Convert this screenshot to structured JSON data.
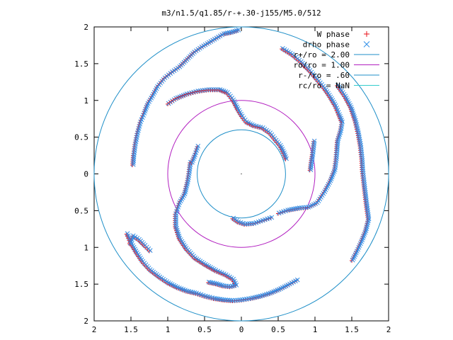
{
  "chart_data": {
    "type": "scatter",
    "title": "m3/n1.5/q1.85/r-+.30-j155/M5.0/512",
    "xlabel": "",
    "ylabel": "",
    "xlim": [
      -2,
      2
    ],
    "ylim": [
      -2,
      2
    ],
    "x_tick_values": [
      -2,
      -1.5,
      -1,
      -0.5,
      0,
      0.5,
      1,
      1.5,
      2
    ],
    "x_tick_labels": [
      "2",
      "1.5",
      "1",
      "0.5",
      "0",
      "0.5",
      "1",
      "1.5",
      "2"
    ],
    "y_tick_values": [
      2,
      1.5,
      1,
      0.5,
      0,
      -0.5,
      -1,
      -1.5,
      -2
    ],
    "y_tick_labels": [
      "2",
      "1.5",
      "1",
      "0.5",
      "0",
      "0.5",
      "1",
      "1.5",
      "2"
    ],
    "grid": false,
    "legend_position": "top-right",
    "circles": [
      {
        "label": "r+/ro = 2.00",
        "radius": 2.0,
        "color": "#1f8fc8"
      },
      {
        "label": "ro/ro = 1.00",
        "radius": 1.0,
        "color": "#b21fc0"
      },
      {
        "label": "r-/ro = .60",
        "radius": 0.6,
        "color": "#1f8fc8"
      },
      {
        "label": "rc/ro = NaN",
        "radius": null,
        "color": "#33cccc"
      }
    ],
    "series": [
      {
        "name": "W phase",
        "marker": "+",
        "color": "#e8101a"
      },
      {
        "name": "drho phase",
        "marker": "x",
        "color": "#2f8fe8"
      }
    ],
    "arms": [
      [
        [
          -0.05,
          1.95
        ],
        [
          -0.15,
          1.92
        ],
        [
          -0.25,
          1.9
        ],
        [
          -0.35,
          1.84
        ],
        [
          -0.45,
          1.78
        ],
        [
          -0.55,
          1.72
        ],
        [
          -0.65,
          1.65
        ],
        [
          -0.75,
          1.55
        ],
        [
          -0.85,
          1.45
        ],
        [
          -0.95,
          1.38
        ],
        [
          -1.05,
          1.3
        ],
        [
          -1.15,
          1.18
        ],
        [
          -1.22,
          1.05
        ],
        [
          -1.28,
          0.95
        ],
        [
          -1.33,
          0.82
        ],
        [
          -1.38,
          0.7
        ],
        [
          -1.42,
          0.55
        ],
        [
          -1.45,
          0.4
        ],
        [
          -1.47,
          0.25
        ],
        [
          -1.48,
          0.12
        ]
      ],
      [
        [
          -1.0,
          0.95
        ],
        [
          -0.9,
          1.02
        ],
        [
          -0.75,
          1.08
        ],
        [
          -0.6,
          1.12
        ],
        [
          -0.45,
          1.14
        ],
        [
          -0.3,
          1.14
        ],
        [
          -0.2,
          1.1
        ],
        [
          -0.12,
          1.0
        ],
        [
          -0.06,
          0.88
        ],
        [
          0.0,
          0.78
        ],
        [
          0.06,
          0.7
        ],
        [
          0.16,
          0.65
        ],
        [
          0.28,
          0.62
        ],
        [
          0.38,
          0.55
        ],
        [
          0.46,
          0.45
        ],
        [
          0.52,
          0.38
        ],
        [
          0.57,
          0.28
        ],
        [
          0.6,
          0.2
        ]
      ],
      [
        [
          0.55,
          1.7
        ],
        [
          0.68,
          1.62
        ],
        [
          0.8,
          1.52
        ],
        [
          0.92,
          1.4
        ],
        [
          1.02,
          1.28
        ],
        [
          1.12,
          1.16
        ],
        [
          1.2,
          1.04
        ],
        [
          1.27,
          0.92
        ],
        [
          1.32,
          0.8
        ],
        [
          1.36,
          0.7
        ],
        [
          1.34,
          0.58
        ],
        [
          1.3,
          0.45
        ],
        [
          1.29,
          0.32
        ],
        [
          1.28,
          0.2
        ],
        [
          1.26,
          0.05
        ],
        [
          1.2,
          -0.1
        ],
        [
          1.12,
          -0.25
        ],
        [
          1.02,
          -0.4
        ],
        [
          0.9,
          -0.46
        ],
        [
          0.78,
          -0.47
        ],
        [
          0.62,
          -0.5
        ],
        [
          0.5,
          -0.54
        ]
      ],
      [
        [
          0.98,
          0.44
        ],
        [
          0.96,
          0.26
        ],
        [
          0.94,
          0.13
        ],
        [
          0.93,
          0.05
        ]
      ],
      [
        [
          1.3,
          1.2
        ],
        [
          1.4,
          1.05
        ],
        [
          1.48,
          0.9
        ],
        [
          1.54,
          0.72
        ],
        [
          1.58,
          0.55
        ],
        [
          1.61,
          0.38
        ],
        [
          1.63,
          0.2
        ],
        [
          1.64,
          0.03
        ],
        [
          1.66,
          -0.15
        ],
        [
          1.68,
          -0.32
        ],
        [
          1.7,
          -0.48
        ],
        [
          1.72,
          -0.62
        ],
        [
          1.68,
          -0.78
        ],
        [
          1.62,
          -0.93
        ],
        [
          1.56,
          -1.06
        ],
        [
          1.5,
          -1.18
        ]
      ],
      [
        [
          0.4,
          -0.6
        ],
        [
          0.28,
          -0.64
        ],
        [
          0.16,
          -0.68
        ],
        [
          0.04,
          -0.69
        ],
        [
          -0.05,
          -0.66
        ],
        [
          -0.12,
          -0.61
        ]
      ],
      [
        [
          -0.7,
          0.15
        ],
        [
          -0.72,
          0.0
        ],
        [
          -0.74,
          -0.12
        ],
        [
          -0.78,
          -0.28
        ],
        [
          -0.85,
          -0.4
        ],
        [
          -0.9,
          -0.55
        ],
        [
          -0.9,
          -0.72
        ],
        [
          -0.85,
          -0.88
        ],
        [
          -0.76,
          -1.02
        ],
        [
          -0.64,
          -1.15
        ],
        [
          -0.5,
          -1.24
        ],
        [
          -0.36,
          -1.32
        ],
        [
          -0.22,
          -1.38
        ],
        [
          -0.12,
          -1.44
        ],
        [
          -0.08,
          -1.52
        ],
        [
          -0.16,
          -1.54
        ],
        [
          -0.25,
          -1.53
        ],
        [
          -0.35,
          -1.5
        ],
        [
          -0.45,
          -1.48
        ]
      ],
      [
        [
          -0.6,
          0.37
        ],
        [
          -0.64,
          0.25
        ],
        [
          -0.68,
          0.15
        ]
      ],
      [
        [
          0.75,
          -1.45
        ],
        [
          0.62,
          -1.52
        ],
        [
          0.5,
          -1.58
        ],
        [
          0.38,
          -1.63
        ],
        [
          0.25,
          -1.67
        ],
        [
          0.12,
          -1.7
        ],
        [
          0.0,
          -1.72
        ],
        [
          -0.12,
          -1.73
        ],
        [
          -0.25,
          -1.72
        ],
        [
          -0.38,
          -1.7
        ],
        [
          -0.5,
          -1.67
        ],
        [
          -0.62,
          -1.63
        ],
        [
          -0.75,
          -1.6
        ],
        [
          -0.88,
          -1.55
        ],
        [
          -1.0,
          -1.49
        ],
        [
          -1.12,
          -1.41
        ],
        [
          -1.25,
          -1.31
        ],
        [
          -1.35,
          -1.2
        ],
        [
          -1.43,
          -1.08
        ],
        [
          -1.5,
          -0.96
        ],
        [
          -1.56,
          -0.82
        ]
      ],
      [
        [
          -1.25,
          -1.05
        ],
        [
          -1.32,
          -0.98
        ],
        [
          -1.4,
          -0.9
        ],
        [
          -1.48,
          -0.85
        ],
        [
          -1.52,
          -0.95
        ]
      ]
    ]
  }
}
